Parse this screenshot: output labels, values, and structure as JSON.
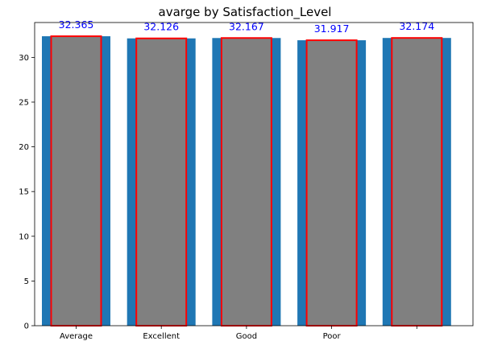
{
  "chart_data": {
    "type": "bar",
    "title": "avarge by Satisfaction_Level",
    "xlabel": "",
    "ylabel": "",
    "categories": [
      "Average",
      "Excellent",
      "Good",
      "Poor",
      ""
    ],
    "values": [
      32.365,
      32.126,
      32.167,
      31.917,
      32.174
    ],
    "data_labels": [
      "32.365",
      "32.126",
      "32.167",
      "31.917",
      "32.174"
    ],
    "ylim": [
      0,
      33.9
    ],
    "yticks": [
      0,
      5,
      10,
      15,
      20,
      25,
      30
    ],
    "grid": false,
    "legend": "none",
    "colors": {
      "back_bar": "#1f77b4",
      "front_bar_fill": "#808080",
      "front_bar_edge": "#ff0000",
      "data_label": "#0000ff",
      "axis": "#000000"
    }
  }
}
